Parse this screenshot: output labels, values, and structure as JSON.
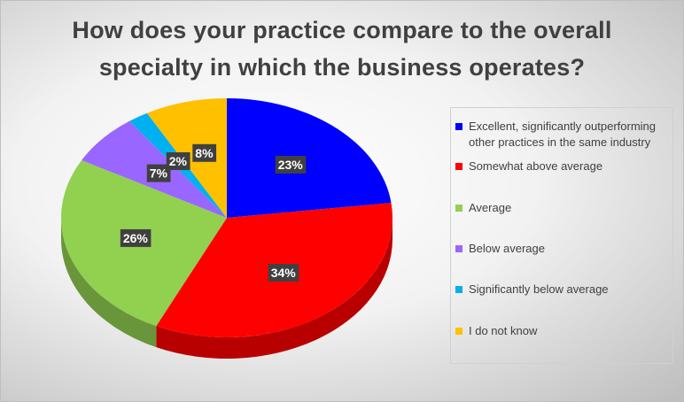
{
  "chart_data": {
    "type": "pie",
    "title": "How does your practice compare to the overall specialty in which the business operates?",
    "categories": [
      "Excellent, significantly outperforming other practices in the same industry",
      "Somewhat above average",
      "Average",
      "Below average",
      "Significantly below average",
      "I do not know"
    ],
    "values": [
      23,
      34,
      26,
      7,
      2,
      8
    ],
    "value_labels": [
      "23%",
      "34%",
      "26%",
      "7%",
      "2%",
      "8%"
    ],
    "colors": [
      "#0000ff",
      "#ff0000",
      "#92d050",
      "#9966ff",
      "#00b0f0",
      "#ffc000"
    ],
    "legend": "right"
  }
}
